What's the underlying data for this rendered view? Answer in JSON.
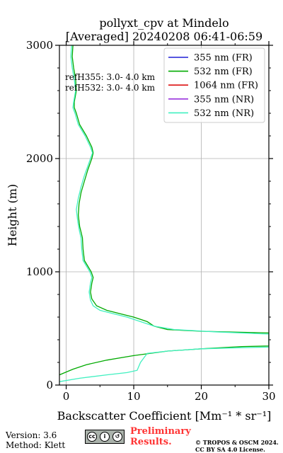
{
  "chart_data": {
    "type": "line",
    "title_line1": "pollyxt_cpv at Mindelo",
    "title_line2": "[Averaged] 20240208 06:41-06:59",
    "xlabel": "Backscatter Coefficient [Mm⁻¹ * sr⁻¹]",
    "ylabel": "Height (m)",
    "xlim": [
      -1,
      30
    ],
    "ylim": [
      0,
      3000
    ],
    "xticks": [
      0,
      10,
      20,
      30
    ],
    "yticks": [
      0,
      1000,
      2000,
      3000
    ],
    "grid": true,
    "legend_position": "top-right",
    "annotations": [
      "refH355:  3.0- 4.0 km",
      "refH532:  3.0- 4.0 km"
    ],
    "series": [
      {
        "name": "355 nm (FR)",
        "color": "#1f1fd6",
        "x": [],
        "y": []
      },
      {
        "name": "532 nm (FR)",
        "color": "#00aa00",
        "x": [
          -1,
          1,
          3,
          6,
          10,
          15,
          20,
          26,
          30,
          30,
          20,
          15,
          13,
          12,
          10,
          8,
          6,
          4.5,
          3.8,
          3.6,
          3.8,
          4,
          3.7,
          3.2,
          2.7,
          2.5,
          2.4,
          2.2,
          2,
          1.8,
          1.9,
          2.2,
          2.7,
          3.2,
          3.8,
          4,
          3.8,
          3,
          2,
          1.5,
          1.2,
          1.2,
          1.5,
          1.4,
          1.1,
          0.9,
          1
        ],
        "y": [
          90,
          140,
          180,
          220,
          260,
          300,
          320,
          340,
          345,
          460,
          475,
          490,
          520,
          560,
          600,
          630,
          660,
          700,
          760,
          820,
          900,
          950,
          1000,
          1050,
          1100,
          1200,
          1300,
          1350,
          1400,
          1500,
          1600,
          1700,
          1800,
          1900,
          2000,
          2050,
          2100,
          2200,
          2300,
          2400,
          2450,
          2500,
          2600,
          2700,
          2800,
          2900,
          3000
        ]
      },
      {
        "name": "1064 nm (FR)",
        "color": "#dd1111",
        "x": [],
        "y": []
      },
      {
        "name": "355 nm (NR)",
        "color": "#9933dd",
        "x": [],
        "y": []
      },
      {
        "name": "532 nm (NR)",
        "color": "#40f0c0",
        "x": [
          -1,
          2,
          6,
          9,
          10.5,
          11,
          12,
          15,
          20,
          26,
          30,
          30,
          22,
          16,
          13,
          11,
          9,
          7,
          5,
          4,
          3.6,
          3.4,
          3.6,
          3.8,
          3.5,
          3,
          2.5,
          2.3,
          2.2,
          2,
          1.7,
          1.5,
          1.8,
          2.2,
          2.7,
          3.3,
          3.6,
          3.9,
          3.6,
          2.8,
          1.8,
          1.3,
          1,
          1.1,
          1.4,
          1.2,
          0.9,
          0.7,
          0.8
        ],
        "y": [
          30,
          60,
          90,
          110,
          130,
          200,
          280,
          300,
          320,
          330,
          335,
          450,
          470,
          490,
          520,
          560,
          600,
          630,
          660,
          700,
          750,
          820,
          900,
          950,
          1000,
          1050,
          1100,
          1200,
          1300,
          1350,
          1450,
          1550,
          1650,
          1750,
          1850,
          1950,
          2000,
          2050,
          2100,
          2200,
          2300,
          2400,
          2450,
          2500,
          2600,
          2700,
          2800,
          2900,
          3000
        ]
      }
    ]
  },
  "footer": {
    "version": "Version: 3.6",
    "method": "Method: Klett",
    "prelim_line1": "Preliminary",
    "prelim_line2": "Results.",
    "copyright_line1": "© TROPOS & OSCM 2024.",
    "copyright_line2": "CC BY SA 4.0 License."
  },
  "badge": {
    "cc": "cc",
    "by": "i",
    "sa": "↺",
    "text_by": "BY",
    "text_sa": "SA"
  }
}
